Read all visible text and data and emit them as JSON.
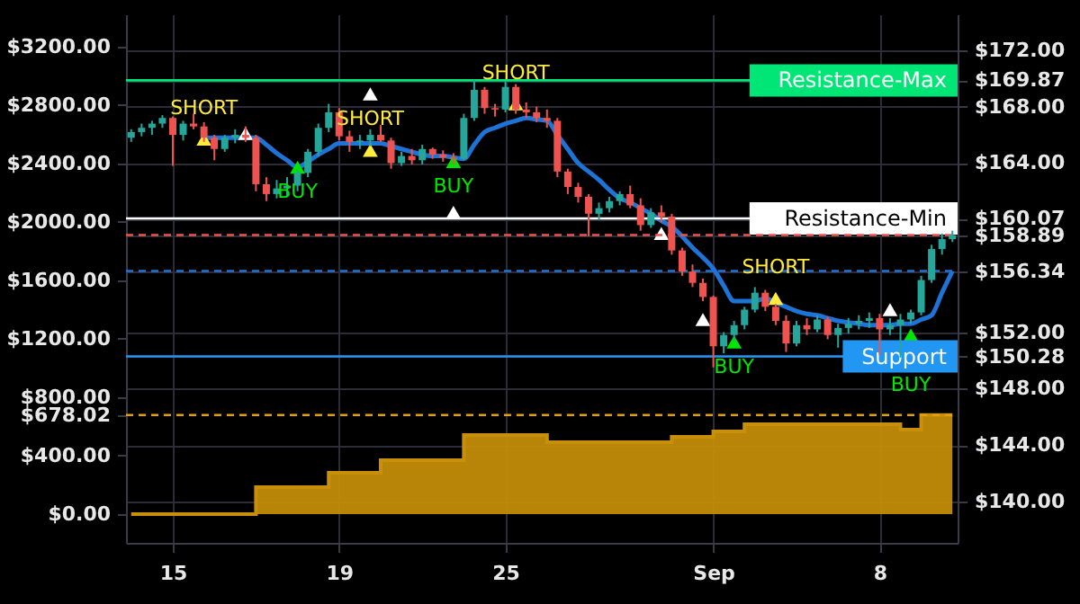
{
  "chart_data": {
    "type": "candlestick",
    "categories": [
      null,
      null,
      null,
      null,
      "15",
      null,
      null,
      null,
      null,
      null,
      null,
      null,
      null,
      null,
      null,
      null,
      null,
      null,
      null,
      null,
      "19",
      null,
      null,
      null,
      null,
      null,
      null,
      null,
      null,
      null,
      null,
      null,
      null,
      null,
      null,
      null,
      "25",
      null,
      null,
      null,
      null,
      null,
      null,
      null,
      null,
      null,
      null,
      null,
      null,
      null,
      null,
      null,
      null,
      null,
      null,
      null,
      "Sep",
      null,
      null,
      null,
      null,
      null,
      null,
      null,
      null,
      null,
      null,
      null,
      null,
      null,
      null,
      null,
      "8",
      null,
      null,
      null,
      null,
      null,
      null,
      null
    ],
    "ylim": [
      -197,
      3421
    ],
    "yticks": [
      {
        "value": 0,
        "label": "$0.00"
      },
      {
        "value": 400,
        "label": "$400.00"
      },
      {
        "value": 678.02,
        "label": "$678.02"
      },
      {
        "value": 800,
        "label": "$800.00"
      },
      {
        "value": 1200,
        "label": "$1200.00"
      },
      {
        "value": 1600,
        "label": "$1600.00"
      },
      {
        "value": 2000,
        "label": "$2000.00"
      },
      {
        "value": 2400,
        "label": "$2400.00"
      },
      {
        "value": 2800,
        "label": "$2800.00"
      },
      {
        "value": 3200,
        "label": "$3200.00"
      }
    ],
    "y2lim": [
      137.05,
      174.55
    ],
    "y2ticks": [
      {
        "value": 140,
        "label": "$140.00"
      },
      {
        "value": 144,
        "label": "$144.00"
      },
      {
        "value": 148,
        "label": "$148.00"
      },
      {
        "value": 150.28,
        "label": "$150.28"
      },
      {
        "value": 152,
        "label": "$152.00"
      },
      {
        "value": 156.34,
        "label": "$156.34"
      },
      {
        "value": 158.89,
        "label": "$158.89"
      },
      {
        "value": 160.07,
        "label": "$160.07"
      },
      {
        "value": 164,
        "label": "$164.00"
      },
      {
        "value": 168,
        "label": "$168.00"
      },
      {
        "value": 169.87,
        "label": "$169.87"
      },
      {
        "value": 172,
        "label": "$172.00"
      }
    ],
    "grid": true,
    "series": [
      {
        "type": "area",
        "axis": "y",
        "color": "#c8900a",
        "values": [
          0,
          0,
          0,
          0,
          0,
          0,
          0,
          0,
          0,
          0,
          0,
          0,
          185,
          185,
          185,
          185,
          185,
          185,
          185,
          283,
          283,
          283,
          283,
          283,
          369,
          369,
          369,
          369,
          369,
          369,
          369,
          369,
          542,
          542,
          542,
          542,
          542,
          542,
          542,
          542,
          492,
          492,
          492,
          492,
          492,
          492,
          492,
          492,
          492,
          492,
          492,
          492,
          529,
          529,
          529,
          529,
          566,
          566,
          566,
          615,
          615,
          615,
          615,
          615,
          615,
          615,
          615,
          615,
          615,
          615,
          615,
          615,
          615,
          615,
          578,
          578,
          678.02,
          678.02,
          678.02,
          678.02
        ]
      },
      {
        "axis": "y2",
        "colors": [
          "#26a69a",
          "#26a69a",
          "#26a69a",
          "#26a69a",
          "#ef5350",
          "#26a69a",
          "#ef5350",
          "#ef5350",
          "#ef5350",
          "#26a69a",
          "#26a69a",
          "#ef5350",
          "#ef5350",
          "#ef5350",
          "#26a69a",
          "#26a69a",
          "#26a69a",
          "#26a69a",
          "#26a69a",
          "#26a69a",
          "#ef5350",
          "#ef5350",
          "#26a69a",
          "#26a69a",
          "#ef5350",
          "#ef5350",
          "#26a69a",
          "#ef5350",
          "#26a69a",
          "#ef5350",
          "#ef5350",
          "#ef5350",
          "#26a69a",
          "#26a69a",
          "#ef5350",
          "#ef5350",
          "#26a69a",
          "#ef5350",
          "#ef5350",
          "#ef5350",
          "#ef5350",
          "#ef5350",
          "#ef5350",
          "#ef5350",
          "#ef5350",
          "#26a69a",
          "#26a69a",
          "#26a69a",
          "#ef5350",
          "#ef5350",
          "#26a69a",
          "#ef5350",
          "#ef5350",
          "#ef5350",
          "#ef5350",
          "#ef5350",
          "#ef5350",
          "#26a69a",
          "#26a69a",
          "#26a69a",
          "#26a69a",
          "#ef5350",
          "#ef5350",
          "#ef5350",
          "#26a69a",
          "#ef5350",
          "#26a69a",
          "#ef5350",
          "#26a69a",
          "#26a69a",
          "#26a69a",
          "#26a69a",
          "#ef5350",
          "#26a69a",
          "#26a69a",
          "#26a69a",
          "#26a69a",
          "#26a69a",
          "#26a69a",
          "#26a69a"
        ],
        "ohlc": [
          [
            165.8,
            166.4,
            165.5,
            166.2
          ],
          [
            166.2,
            166.8,
            165.9,
            166.5
          ],
          [
            166.5,
            167.0,
            166.0,
            166.8
          ],
          [
            166.8,
            167.4,
            166.5,
            167.2
          ],
          [
            167.2,
            167.3,
            163.8,
            166.0
          ],
          [
            166.0,
            167.0,
            165.6,
            166.8
          ],
          [
            166.8,
            167.5,
            166.4,
            166.6
          ],
          [
            166.6,
            166.9,
            165.5,
            165.8
          ],
          [
            165.8,
            166.0,
            164.2,
            165.0
          ],
          [
            165.0,
            166.0,
            164.8,
            165.8
          ],
          [
            165.8,
            166.4,
            165.4,
            166.0
          ],
          [
            166.0,
            166.6,
            165.5,
            165.8
          ],
          [
            165.8,
            166.0,
            162.0,
            162.5
          ],
          [
            162.5,
            163.0,
            161.3,
            161.8
          ],
          [
            161.8,
            162.8,
            161.5,
            162.2
          ],
          [
            162.2,
            163.0,
            161.6,
            162.4
          ],
          [
            162.4,
            163.5,
            162.0,
            163.3
          ],
          [
            163.3,
            165.0,
            163.0,
            164.8
          ],
          [
            164.8,
            166.8,
            164.5,
            166.5
          ],
          [
            166.5,
            168.2,
            166.2,
            167.6
          ],
          [
            167.6,
            167.9,
            165.6,
            165.9
          ],
          [
            165.9,
            166.3,
            164.8,
            165.5
          ],
          [
            165.5,
            166.0,
            165.0,
            165.6
          ],
          [
            165.6,
            166.4,
            165.2,
            166.0
          ],
          [
            166.0,
            166.7,
            165.5,
            165.6
          ],
          [
            165.6,
            165.8,
            163.6,
            164.0
          ],
          [
            164.0,
            164.8,
            163.8,
            164.5
          ],
          [
            164.5,
            165.0,
            163.9,
            164.2
          ],
          [
            164.2,
            165.3,
            163.9,
            165.0
          ],
          [
            165.0,
            165.1,
            164.3,
            164.6
          ],
          [
            164.6,
            164.9,
            164.1,
            164.4
          ],
          [
            164.4,
            164.7,
            163.9,
            164.3
          ],
          [
            164.3,
            167.5,
            164.2,
            167.2
          ],
          [
            167.2,
            169.9,
            167.0,
            169.2
          ],
          [
            169.2,
            169.4,
            167.5,
            167.9
          ],
          [
            167.9,
            168.2,
            167.3,
            167.8
          ],
          [
            167.8,
            169.8,
            167.6,
            169.4
          ],
          [
            169.4,
            169.6,
            167.5,
            167.8
          ],
          [
            167.8,
            168.3,
            167.2,
            167.6
          ],
          [
            167.6,
            168.0,
            166.9,
            167.2
          ],
          [
            167.2,
            167.8,
            166.5,
            167.0
          ],
          [
            167.0,
            167.2,
            163.0,
            163.4
          ],
          [
            163.4,
            163.6,
            161.8,
            162.3
          ],
          [
            162.3,
            162.6,
            161.2,
            161.6
          ],
          [
            161.6,
            161.8,
            158.8,
            160.4
          ],
          [
            160.4,
            161.2,
            160.0,
            160.8
          ],
          [
            160.8,
            161.6,
            160.5,
            161.3
          ],
          [
            161.3,
            162.0,
            161.0,
            161.8
          ],
          [
            161.8,
            162.4,
            160.8,
            161.0
          ],
          [
            161.0,
            161.5,
            159.2,
            159.6
          ],
          [
            159.6,
            160.8,
            159.4,
            160.5
          ],
          [
            160.5,
            161.0,
            159.8,
            160.2
          ],
          [
            160.2,
            160.4,
            157.5,
            157.8
          ],
          [
            157.8,
            158.0,
            156.0,
            156.3
          ],
          [
            156.3,
            156.8,
            155.2,
            155.5
          ],
          [
            155.5,
            155.8,
            154.2,
            154.5
          ],
          [
            154.5,
            154.6,
            149.5,
            151.0
          ],
          [
            151.0,
            152.0,
            150.5,
            151.8
          ],
          [
            151.8,
            152.8,
            151.4,
            152.5
          ],
          [
            152.5,
            153.8,
            152.2,
            153.6
          ],
          [
            153.6,
            155.2,
            153.4,
            154.8
          ],
          [
            154.8,
            155.0,
            153.5,
            153.8
          ],
          [
            153.8,
            154.0,
            152.5,
            152.8
          ],
          [
            152.8,
            153.2,
            150.6,
            151.2
          ],
          [
            151.2,
            152.8,
            151.0,
            152.5
          ],
          [
            152.5,
            153.0,
            151.8,
            152.2
          ],
          [
            152.2,
            153.2,
            152.0,
            152.9
          ],
          [
            152.9,
            153.1,
            151.5,
            151.8
          ],
          [
            151.8,
            152.6,
            150.9,
            152.3
          ],
          [
            152.3,
            153.0,
            151.9,
            152.6
          ],
          [
            152.6,
            153.2,
            152.2,
            152.8
          ],
          [
            152.8,
            153.4,
            152.3,
            153.0
          ],
          [
            153.0,
            153.3,
            150.4,
            152.2
          ],
          [
            152.2,
            153.0,
            151.8,
            152.5
          ],
          [
            152.5,
            153.3,
            150.2,
            152.9
          ],
          [
            152.9,
            153.6,
            152.6,
            153.4
          ],
          [
            153.4,
            156.0,
            153.2,
            155.7
          ],
          [
            155.7,
            158.2,
            155.5,
            157.9
          ],
          [
            157.9,
            159.0,
            157.5,
            158.6
          ],
          [
            158.6,
            159.2,
            158.4,
            158.89
          ]
        ]
      },
      {
        "type": "line",
        "axis": "y2",
        "color": "#1e74d6",
        "values": [
          null,
          null,
          null,
          null,
          null,
          null,
          null,
          165.8,
          165.8,
          165.8,
          165.8,
          165.8,
          165.8,
          165.3,
          164.7,
          164.2,
          163.7,
          164.1,
          164.6,
          165.0,
          165.4,
          165.4,
          165.4,
          165.4,
          165.4,
          165.2,
          165.0,
          164.8,
          164.6,
          164.5,
          164.5,
          164.4,
          164.3,
          165.3,
          166.2,
          166.5,
          166.8,
          167.0,
          167.2,
          167.1,
          167.0,
          166.0,
          165.0,
          164.0,
          163.4,
          162.8,
          162.1,
          161.5,
          161.2,
          160.8,
          160.4,
          159.9,
          159.5,
          158.8,
          158.0,
          157.3,
          156.5,
          155.3,
          154.2,
          154.2,
          154.2,
          154.4,
          154.1,
          153.8,
          153.5,
          153.3,
          153.2,
          153.0,
          152.8,
          152.7,
          152.6,
          152.5,
          152.5,
          152.5,
          152.6,
          152.6,
          152.9,
          153.2,
          154.8,
          156.34
        ]
      },
      {
        "type": "scatter",
        "axis": "y2",
        "marker": "triangle",
        "color": "#ffffff",
        "values": [
          null,
          null,
          null,
          null,
          null,
          null,
          null,
          null,
          null,
          null,
          null,
          166.1,
          null,
          null,
          null,
          null,
          null,
          null,
          null,
          null,
          null,
          null,
          null,
          168.9,
          null,
          null,
          null,
          null,
          null,
          null,
          null,
          160.5,
          null,
          null,
          null,
          null,
          null,
          null,
          null,
          null,
          null,
          null,
          null,
          null,
          null,
          null,
          null,
          null,
          null,
          null,
          null,
          159.0,
          null,
          null,
          null,
          152.9,
          null,
          null,
          null,
          null,
          null,
          null,
          null,
          null,
          null,
          null,
          null,
          null,
          null,
          null,
          null,
          null,
          null,
          153.6,
          null,
          null,
          null,
          null,
          null,
          null
        ]
      },
      {
        "type": "scatter",
        "axis": "y2",
        "marker": "triangle",
        "color": "#ffeb3b",
        "values": [
          null,
          null,
          null,
          null,
          null,
          null,
          null,
          165.7,
          null,
          null,
          null,
          null,
          null,
          null,
          null,
          null,
          null,
          null,
          null,
          null,
          null,
          null,
          null,
          164.9,
          null,
          null,
          null,
          null,
          null,
          null,
          null,
          null,
          null,
          null,
          null,
          null,
          null,
          168.2,
          null,
          null,
          null,
          null,
          null,
          null,
          null,
          null,
          null,
          null,
          null,
          null,
          null,
          null,
          null,
          null,
          null,
          null,
          null,
          null,
          null,
          null,
          null,
          null,
          154.4,
          null,
          null,
          null,
          null,
          null,
          null,
          null,
          null,
          null,
          null,
          null,
          null,
          null,
          null,
          null,
          null,
          null
        ]
      },
      {
        "type": "scatter",
        "axis": "y2",
        "marker": "triangle",
        "color": "#00e600",
        "values": [
          null,
          null,
          null,
          null,
          null,
          null,
          null,
          null,
          null,
          null,
          null,
          null,
          null,
          null,
          null,
          null,
          163.7,
          null,
          null,
          null,
          null,
          null,
          null,
          null,
          null,
          null,
          null,
          null,
          null,
          null,
          null,
          164.1,
          null,
          null,
          null,
          null,
          null,
          null,
          null,
          null,
          null,
          null,
          null,
          null,
          null,
          null,
          null,
          null,
          null,
          null,
          null,
          null,
          null,
          null,
          null,
          null,
          null,
          null,
          151.3,
          null,
          null,
          null,
          null,
          null,
          null,
          null,
          null,
          null,
          null,
          null,
          null,
          null,
          null,
          null,
          null,
          151.8,
          null,
          null,
          null,
          null
        ]
      }
    ],
    "ref_lines": [
      {
        "axis": "y2",
        "value": 169.87,
        "label": "Resistance-Max",
        "color": "#00e676"
      },
      {
        "axis": "y2",
        "value": 160.07,
        "label": "Resistance-Min",
        "color": "#ffffff"
      },
      {
        "axis": "y2",
        "value": 150.28,
        "label": "Support",
        "color": "#2196f3"
      },
      {
        "axis": "y2",
        "value": 158.89,
        "color": "#ef5350",
        "line_style": "dashed"
      },
      {
        "axis": "y2",
        "value": 156.34,
        "color": "#1e74d6",
        "line_style": "dashed"
      },
      {
        "axis": "y",
        "value": 678.02,
        "color": "#e0a010",
        "line_style": "dashed"
      }
    ],
    "annotations": [
      "SHORT",
      "BUY",
      "SHORT",
      "BUY",
      "SHORT",
      "BUY",
      "SHORT",
      "BUY"
    ]
  }
}
